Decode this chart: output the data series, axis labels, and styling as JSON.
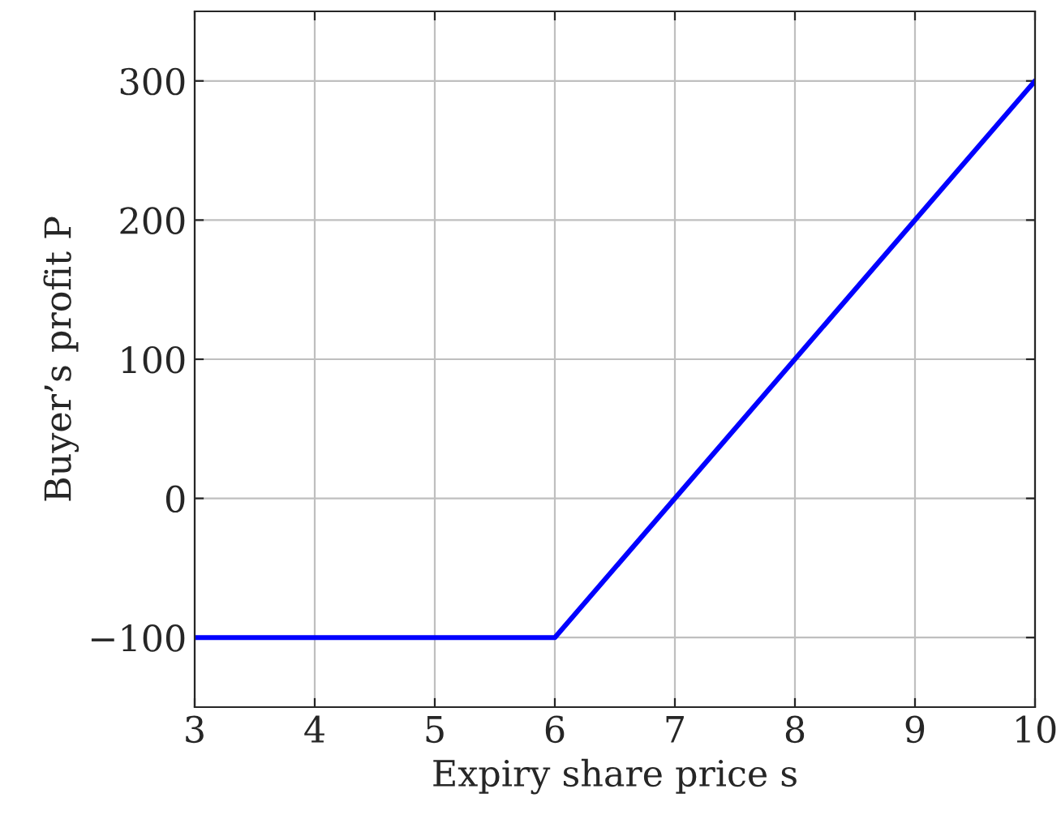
{
  "chart_data": {
    "type": "line",
    "xlabel": "Expiry share price s",
    "ylabel": "Buyer’s profit P",
    "x": [
      3,
      6,
      10
    ],
    "series": [
      {
        "color": "#0000ff",
        "values": [
          -100,
          -100,
          300
        ]
      }
    ],
    "xlim": [
      3,
      10
    ],
    "xticks": [
      3,
      4,
      5,
      6,
      7,
      8,
      9,
      10
    ],
    "ylim": [
      -150,
      350
    ],
    "yticks": [
      {
        "value": -100,
        "label": "−100"
      },
      0,
      100,
      200,
      300
    ],
    "grid": true,
    "marker": "none",
    "line_style": "solid"
  }
}
